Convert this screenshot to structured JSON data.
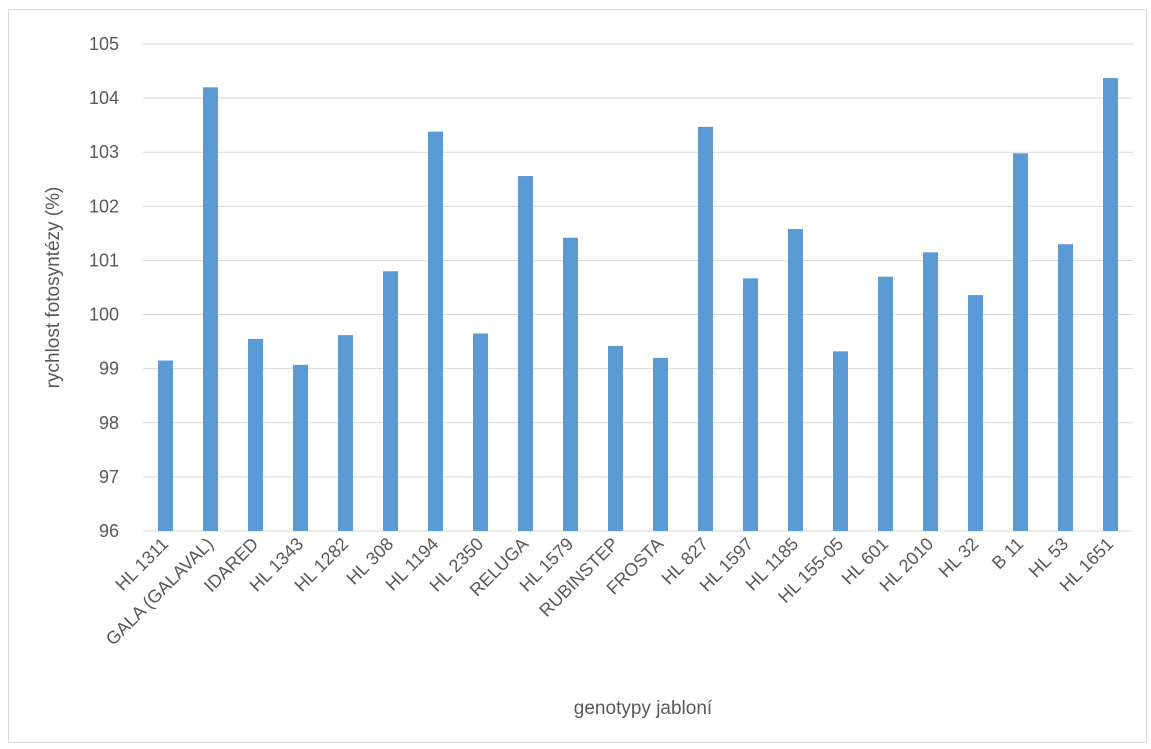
{
  "chart_data": {
    "type": "bar",
    "title": "",
    "xlabel": "genotypy jabloní",
    "ylabel": "rychlost fotosyntézy (%)",
    "ylim": [
      96,
      105
    ],
    "ytick_step": 1,
    "grid": true,
    "legend": "none",
    "bar_color": "#5b9bd5",
    "categories": [
      "HL 1311",
      "GALA (GALAVAL)",
      "IDARED",
      "HL 1343",
      "HL 1282",
      "HL 308",
      "HL 1194",
      "HL 2350",
      "RELUGA",
      "HL 1579",
      "RUBINSTEP",
      "FROSTA",
      "HL 827",
      "HL 1597",
      "HL 1185",
      "HL 155-05",
      "HL 601",
      "HL 2010",
      "HL 32",
      "B 11",
      "HL 53",
      "HL 1651"
    ],
    "series": [
      {
        "values": [
          99.15,
          104.2,
          99.55,
          99.07,
          99.62,
          100.8,
          103.38,
          99.65,
          102.56,
          101.42,
          99.42,
          99.2,
          103.47,
          100.67,
          101.58,
          99.32,
          100.7,
          101.15,
          100.36,
          102.98,
          101.3,
          104.37
        ]
      }
    ]
  }
}
